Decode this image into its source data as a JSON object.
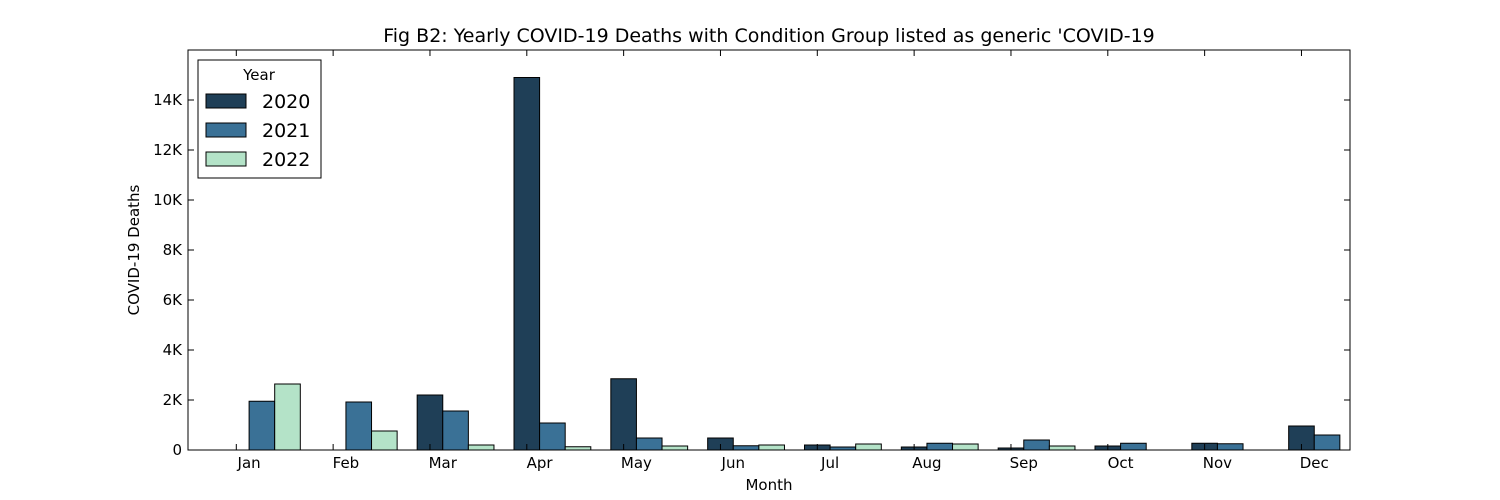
{
  "chart_data": {
    "type": "bar",
    "title": "Fig B2: Yearly COVID-19 Deaths with Condition Group listed as generic 'COVID-19",
    "xlabel": "Month",
    "ylabel": "COVID-19 Deaths",
    "categories": [
      "Jan",
      "Feb",
      "Mar",
      "Apr",
      "May",
      "Jun",
      "Jul",
      "Aug",
      "Sep",
      "Oct",
      "Nov",
      "Dec"
    ],
    "ylim": [
      0,
      16000
    ],
    "yticks": [
      0,
      2000,
      4000,
      6000,
      8000,
      10000,
      12000,
      14000
    ],
    "ytick_labels": [
      "0",
      "2K",
      "4K",
      "6K",
      "8K",
      "10K",
      "12K",
      "14K"
    ],
    "grid": false,
    "legend": {
      "title": "Year",
      "placement": "top-left"
    },
    "series": [
      {
        "name": "2020",
        "color": "#1f3f57",
        "values": [
          0,
          0,
          2200,
          14900,
          2850,
          480,
          200,
          120,
          80,
          160,
          270,
          960
        ]
      },
      {
        "name": "2021",
        "color": "#3a7196",
        "values": [
          1950,
          1920,
          1560,
          1080,
          480,
          170,
          120,
          270,
          400,
          270,
          250,
          600
        ]
      },
      {
        "name": "2022",
        "color": "#b4e3c8",
        "values": [
          2640,
          760,
          200,
          130,
          160,
          200,
          240,
          240,
          160,
          0,
          0,
          0
        ]
      }
    ]
  }
}
